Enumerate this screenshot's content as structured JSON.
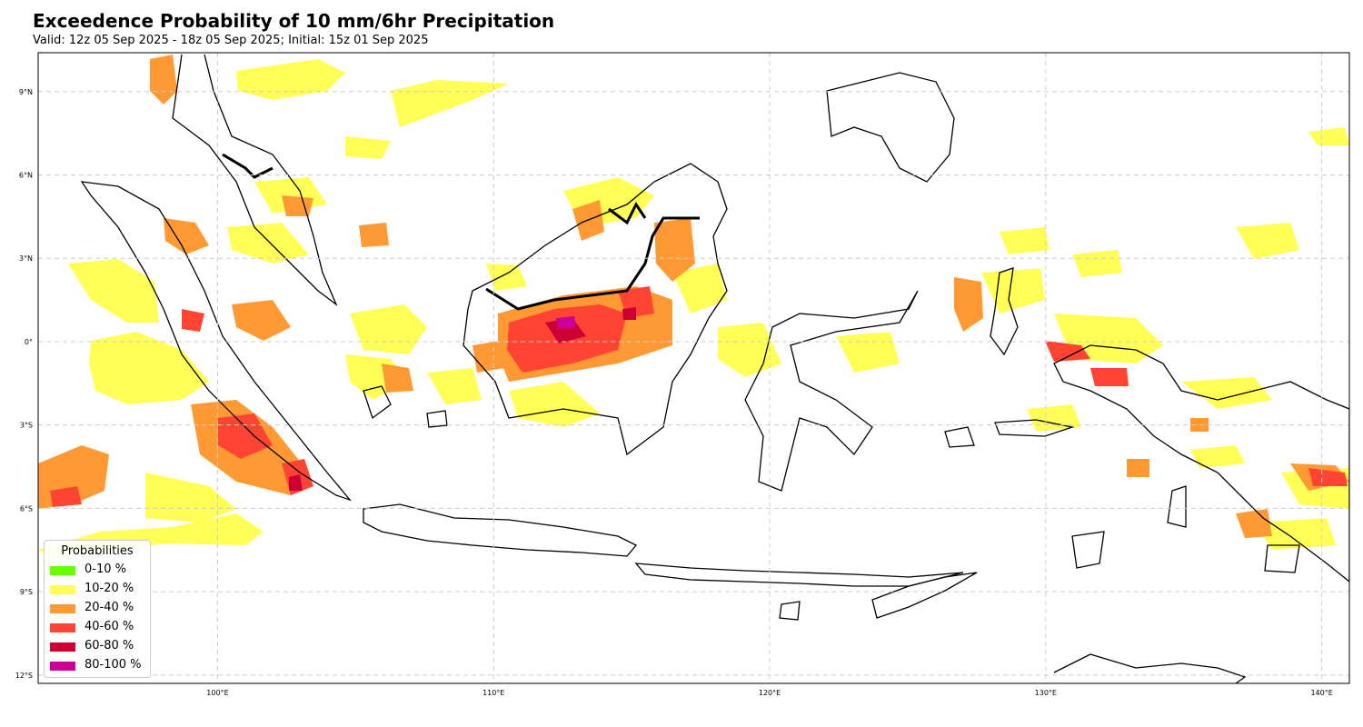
{
  "title": "Exceedence Probability of 10 mm/6hr Precipitation",
  "subtitle": "Valid: 12z 05 Sep 2025 - 18z 05 Sep 2025; Initial: 15z 01 Sep 2025",
  "map": {
    "region": "Indonesia / Maritime Continent",
    "lon_range": [
      93.5,
      141
    ],
    "lat_range": [
      -12.3,
      10.4
    ],
    "lat_ticks": [
      {
        "value": 9,
        "label": "9°N"
      },
      {
        "value": 6,
        "label": "6°N"
      },
      {
        "value": 3,
        "label": "3°N"
      },
      {
        "value": 0,
        "label": "0°"
      },
      {
        "value": -3,
        "label": "3°S"
      },
      {
        "value": -6,
        "label": "6°S"
      },
      {
        "value": -9,
        "label": "9°S"
      },
      {
        "value": -12,
        "label": "12°S"
      }
    ],
    "lon_ticks": [
      {
        "value": 100,
        "label": "100°E"
      },
      {
        "value": 110,
        "label": "110°E"
      },
      {
        "value": 120,
        "label": "120°E"
      },
      {
        "value": 130,
        "label": "130°E"
      },
      {
        "value": 140,
        "label": "140°E"
      }
    ],
    "grid": true,
    "grid_color": "#cccccc",
    "coastline_color": "#000000"
  },
  "legend": {
    "title": "Probabilities",
    "placement": "bottom-left",
    "items": [
      {
        "label": "0-10 %",
        "color": "#66ff00"
      },
      {
        "label": "10-20 %",
        "color": "#ffff55"
      },
      {
        "label": "20-40 %",
        "color": "#ff9933"
      },
      {
        "label": "40-60 %",
        "color": "#ff4433"
      },
      {
        "label": "60-80 %",
        "color": "#cc0033"
      },
      {
        "label": "80-100 %",
        "color": "#cc0099"
      }
    ]
  }
}
